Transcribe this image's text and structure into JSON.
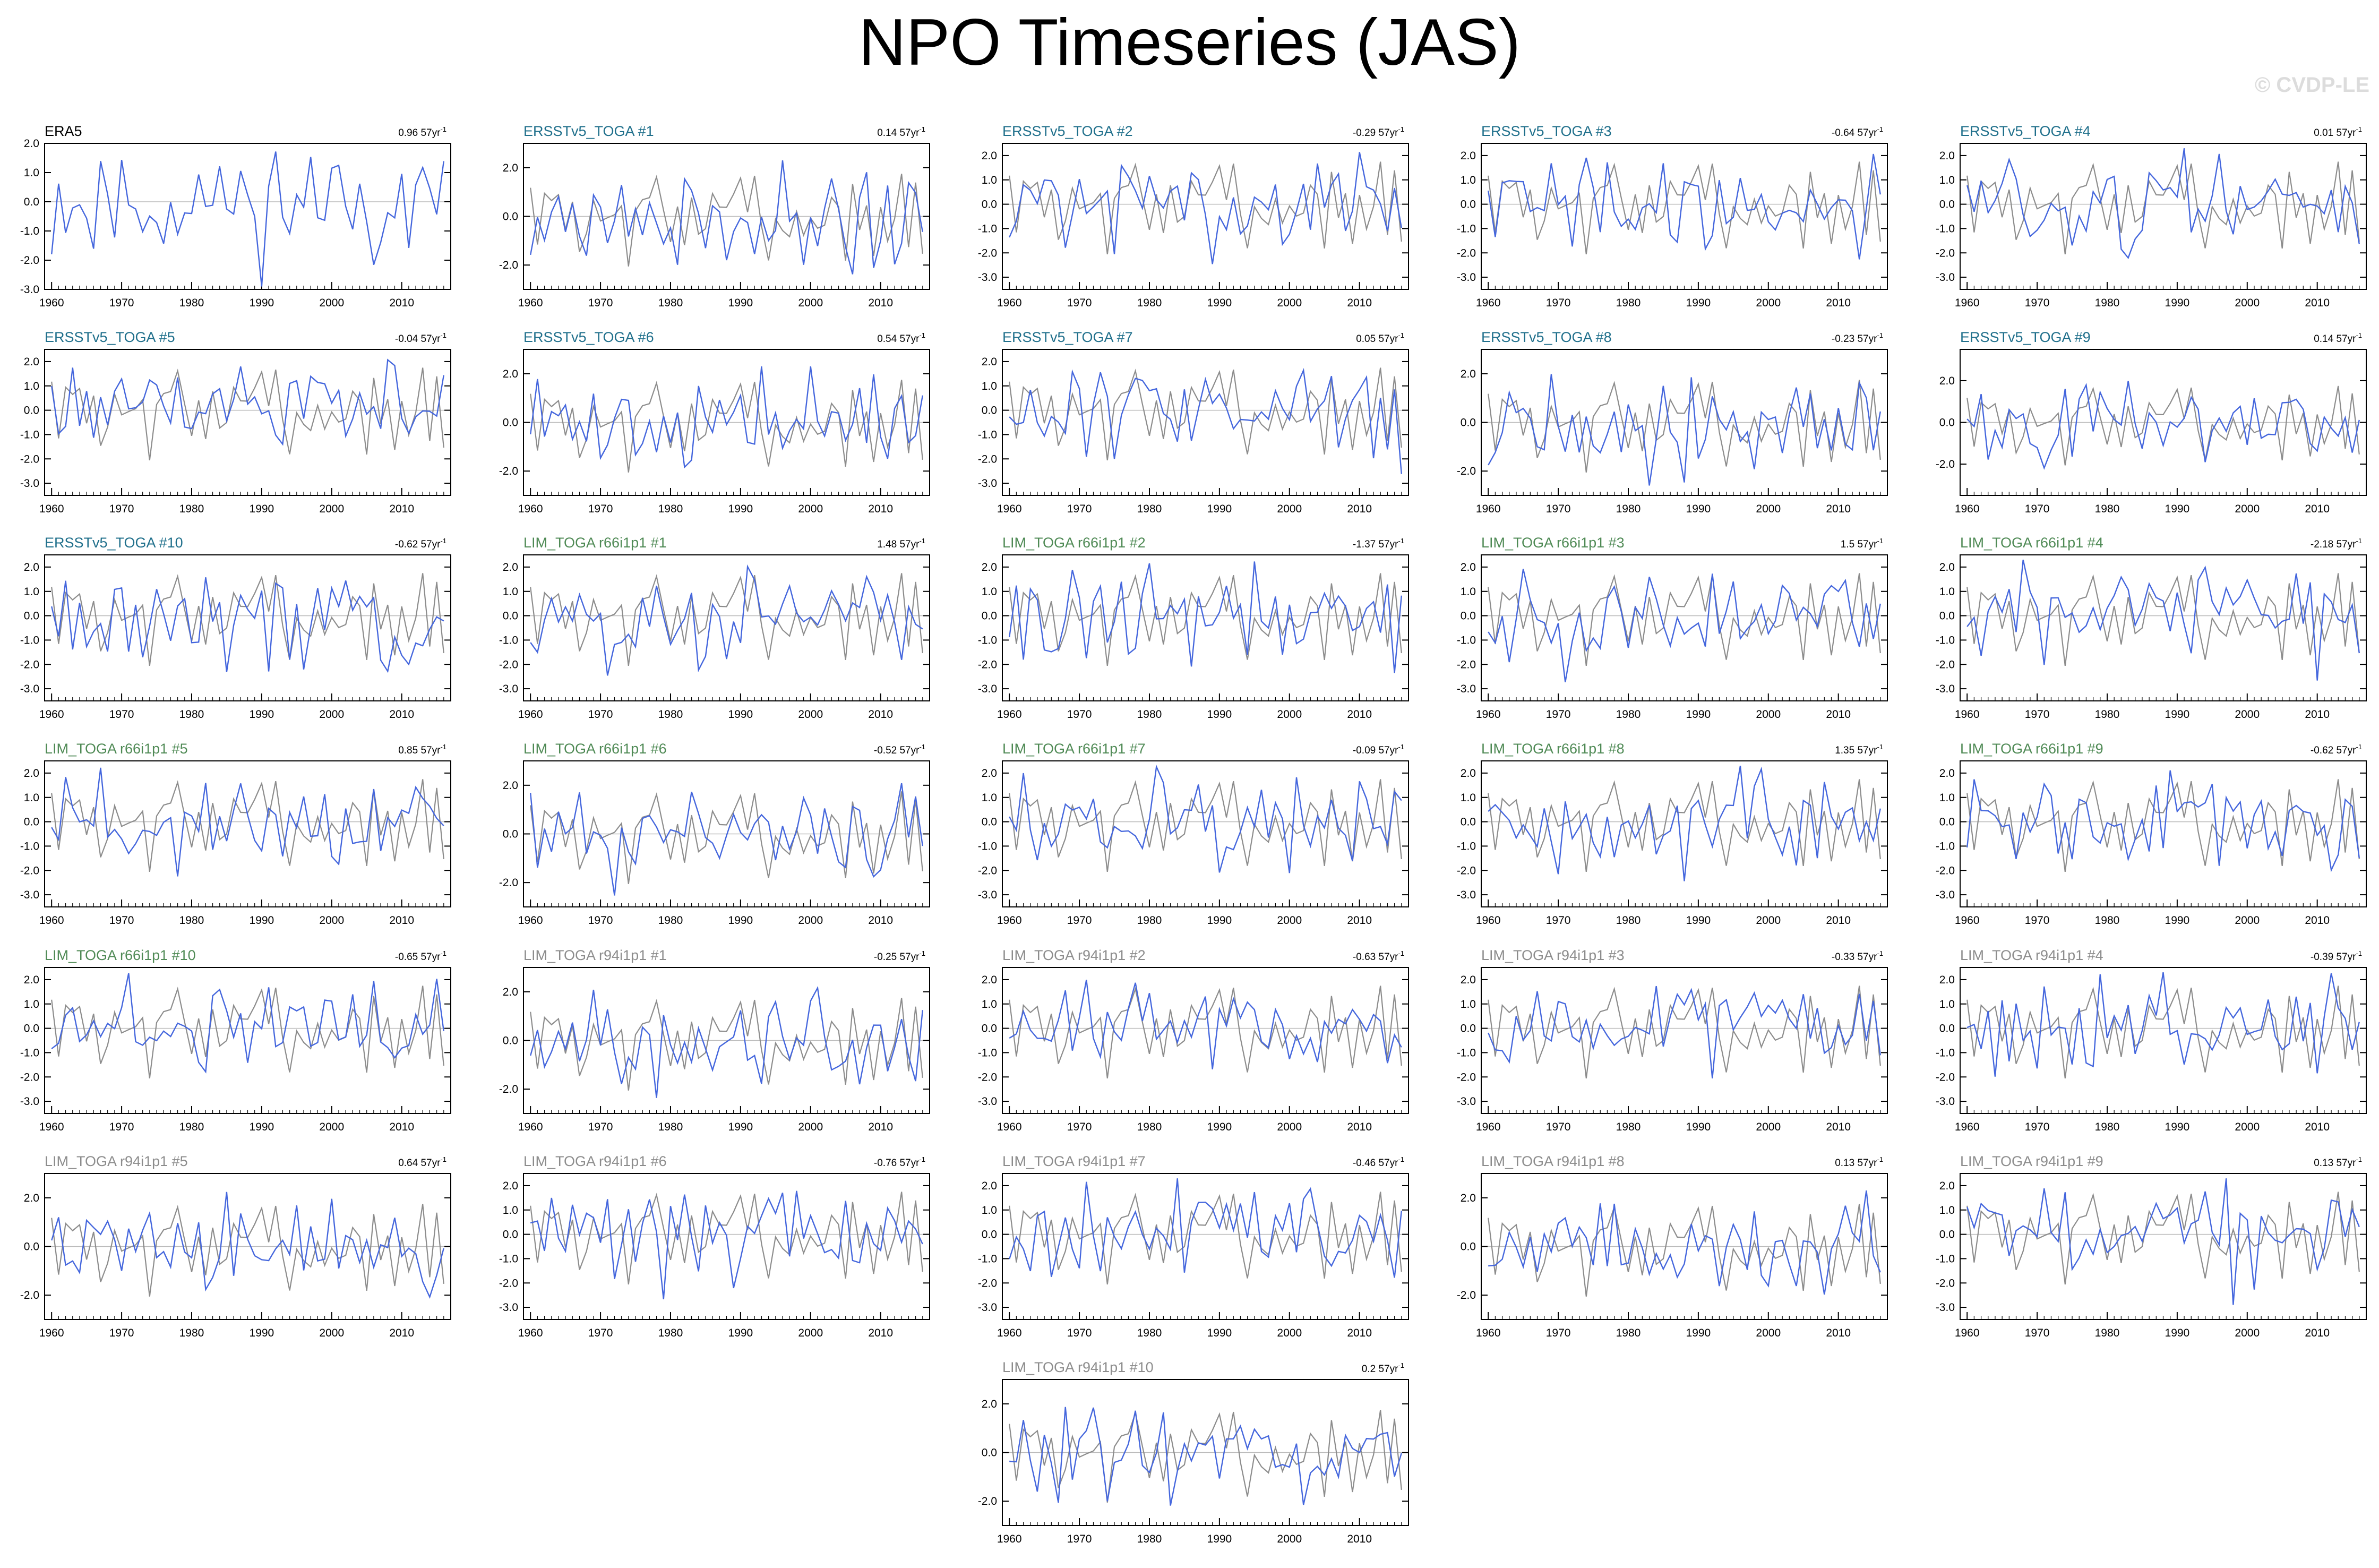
{
  "title": "NPO Timeseries (JAS)",
  "watermark": "© CVDP-LE",
  "colors": {
    "obs_line": "#4466dd",
    "reference_line": "#8c8c8c",
    "zero_line": "#bbbbbb",
    "title_ersst": "#1f6f8b",
    "title_lim66": "#4f8a55",
    "title_lim94": "#8c8c8c",
    "title_era5": "#000000"
  },
  "chart_data": {
    "type": "line",
    "x_range": [
      1960,
      2016
    ],
    "x_ticks": [
      1960,
      1970,
      1980,
      1990,
      2000,
      2010
    ],
    "series_note": "",
    "panels": [
      {
        "title": "ERA5",
        "group": "era5",
        "trend": "0.96 57yr",
        "ylim": [
          -3.0,
          2.0
        ],
        "yticks": [
          "2.0",
          "1.0",
          "0.0",
          "-1.0",
          "-2.0",
          "-3.0"
        ],
        "seed": 11
      },
      {
        "title": "ERSSTv5_TOGA #1",
        "group": "ersst",
        "trend": "0.14 57yr",
        "ylim": [
          -3.0,
          3.0
        ],
        "yticks": [
          "2.0",
          "0.0",
          "-2.0"
        ],
        "seed": 21
      },
      {
        "title": "ERSSTv5_TOGA #2",
        "group": "ersst",
        "trend": "-0.29 57yr",
        "ylim": [
          -3.5,
          2.5
        ],
        "yticks": [
          "2.0",
          "1.0",
          "0.0",
          "-1.0",
          "-2.0",
          "-3.0"
        ],
        "seed": 31
      },
      {
        "title": "ERSSTv5_TOGA #3",
        "group": "ersst",
        "trend": "-0.64 57yr",
        "ylim": [
          -3.5,
          2.5
        ],
        "yticks": [
          "2.0",
          "1.0",
          "0.0",
          "-1.0",
          "-2.0",
          "-3.0"
        ],
        "seed": 41
      },
      {
        "title": "ERSSTv5_TOGA #4",
        "group": "ersst",
        "trend": "0.01 57yr",
        "ylim": [
          -3.5,
          2.5
        ],
        "yticks": [
          "2.0",
          "1.0",
          "0.0",
          "-1.0",
          "-2.0",
          "-3.0"
        ],
        "seed": 51
      },
      {
        "title": "ERSSTv5_TOGA #5",
        "group": "ersst",
        "trend": "-0.04 57yr",
        "ylim": [
          -3.5,
          2.5
        ],
        "yticks": [
          "2.0",
          "1.0",
          "0.0",
          "-1.0",
          "-2.0",
          "-3.0"
        ],
        "seed": 61
      },
      {
        "title": "ERSSTv5_TOGA #6",
        "group": "ersst",
        "trend": "0.54 57yr",
        "ylim": [
          -3.0,
          3.0
        ],
        "yticks": [
          "2.0",
          "0.0",
          "-2.0"
        ],
        "seed": 71
      },
      {
        "title": "ERSSTv5_TOGA #7",
        "group": "ersst",
        "trend": "0.05 57yr",
        "ylim": [
          -3.5,
          2.5
        ],
        "yticks": [
          "2.0",
          "1.0",
          "0.0",
          "-1.0",
          "-2.0",
          "-3.0"
        ],
        "seed": 81
      },
      {
        "title": "ERSSTv5_TOGA #8",
        "group": "ersst",
        "trend": "-0.23 57yr",
        "ylim": [
          -3.0,
          3.0
        ],
        "yticks": [
          "2.0",
          "0.0",
          "-2.0"
        ],
        "seed": 91
      },
      {
        "title": "ERSSTv5_TOGA #9",
        "group": "ersst",
        "trend": "0.14 57yr",
        "ylim": [
          -3.5,
          3.5
        ],
        "yticks": [
          "2.0",
          "0.0",
          "-2.0"
        ],
        "seed": 101
      },
      {
        "title": "ERSSTv5_TOGA #10",
        "group": "ersst",
        "trend": "-0.62 57yr",
        "ylim": [
          -3.5,
          2.5
        ],
        "yticks": [
          "2.0",
          "1.0",
          "0.0",
          "-1.0",
          "-2.0",
          "-3.0"
        ],
        "seed": 111
      },
      {
        "title": "LIM_TOGA r66i1p1 #1",
        "group": "lim66",
        "trend": "1.48 57yr",
        "ylim": [
          -3.5,
          2.5
        ],
        "yticks": [
          "2.0",
          "1.0",
          "0.0",
          "-1.0",
          "-2.0",
          "-3.0"
        ],
        "seed": 121
      },
      {
        "title": "LIM_TOGA r66i1p1 #2",
        "group": "lim66",
        "trend": "-1.37 57yr",
        "ylim": [
          -3.5,
          2.5
        ],
        "yticks": [
          "2.0",
          "1.0",
          "0.0",
          "-1.0",
          "-2.0",
          "-3.0"
        ],
        "seed": 131
      },
      {
        "title": "LIM_TOGA r66i1p1 #3",
        "group": "lim66",
        "trend": "1.5 57yr",
        "ylim": [
          -3.5,
          2.5
        ],
        "yticks": [
          "2.0",
          "1.0",
          "0.0",
          "-1.0",
          "-2.0",
          "-3.0"
        ],
        "seed": 141
      },
      {
        "title": "LIM_TOGA r66i1p1 #4",
        "group": "lim66",
        "trend": "-2.18 57yr",
        "ylim": [
          -3.5,
          2.5
        ],
        "yticks": [
          "2.0",
          "1.0",
          "0.0",
          "-1.0",
          "-2.0",
          "-3.0"
        ],
        "seed": 151
      },
      {
        "title": "LIM_TOGA r66i1p1 #5",
        "group": "lim66",
        "trend": "0.85 57yr",
        "ylim": [
          -3.5,
          2.5
        ],
        "yticks": [
          "2.0",
          "1.0",
          "0.0",
          "-1.0",
          "-2.0",
          "-3.0"
        ],
        "seed": 161
      },
      {
        "title": "LIM_TOGA r66i1p1 #6",
        "group": "lim66",
        "trend": "-0.52 57yr",
        "ylim": [
          -3.0,
          3.0
        ],
        "yticks": [
          "2.0",
          "0.0",
          "-2.0"
        ],
        "seed": 171
      },
      {
        "title": "LIM_TOGA r66i1p1 #7",
        "group": "lim66",
        "trend": "-0.09 57yr",
        "ylim": [
          -3.5,
          2.5
        ],
        "yticks": [
          "2.0",
          "1.0",
          "0.0",
          "-1.0",
          "-2.0",
          "-3.0"
        ],
        "seed": 181
      },
      {
        "title": "LIM_TOGA r66i1p1 #8",
        "group": "lim66",
        "trend": "1.35 57yr",
        "ylim": [
          -3.5,
          2.5
        ],
        "yticks": [
          "2.0",
          "1.0",
          "0.0",
          "-1.0",
          "-2.0",
          "-3.0"
        ],
        "seed": 191
      },
      {
        "title": "LIM_TOGA r66i1p1 #9",
        "group": "lim66",
        "trend": "-0.62 57yr",
        "ylim": [
          -3.5,
          2.5
        ],
        "yticks": [
          "2.0",
          "1.0",
          "0.0",
          "-1.0",
          "-2.0",
          "-3.0"
        ],
        "seed": 201
      },
      {
        "title": "LIM_TOGA r66i1p1 #10",
        "group": "lim66",
        "trend": "-0.65 57yr",
        "ylim": [
          -3.5,
          2.5
        ],
        "yticks": [
          "2.0",
          "1.0",
          "0.0",
          "-1.0",
          "-2.0",
          "-3.0"
        ],
        "seed": 211
      },
      {
        "title": "LIM_TOGA r94i1p1 #1",
        "group": "lim94",
        "trend": "-0.25 57yr",
        "ylim": [
          -3.0,
          3.0
        ],
        "yticks": [
          "2.0",
          "0.0",
          "-2.0"
        ],
        "seed": 221
      },
      {
        "title": "LIM_TOGA r94i1p1 #2",
        "group": "lim94",
        "trend": "-0.63 57yr",
        "ylim": [
          -3.5,
          2.5
        ],
        "yticks": [
          "2.0",
          "1.0",
          "0.0",
          "-1.0",
          "-2.0",
          "-3.0"
        ],
        "seed": 231
      },
      {
        "title": "LIM_TOGA r94i1p1 #3",
        "group": "lim94",
        "trend": "-0.33 57yr",
        "ylim": [
          -3.5,
          2.5
        ],
        "yticks": [
          "2.0",
          "1.0",
          "0.0",
          "-1.0",
          "-2.0",
          "-3.0"
        ],
        "seed": 241
      },
      {
        "title": "LIM_TOGA r94i1p1 #4",
        "group": "lim94",
        "trend": "-0.39 57yr",
        "ylim": [
          -3.5,
          2.5
        ],
        "yticks": [
          "2.0",
          "1.0",
          "0.0",
          "-1.0",
          "-2.0",
          "-3.0"
        ],
        "seed": 251
      },
      {
        "title": "LIM_TOGA r94i1p1 #5",
        "group": "lim94",
        "trend": "0.64 57yr",
        "ylim": [
          -3.0,
          3.0
        ],
        "yticks": [
          "2.0",
          "0.0",
          "-2.0"
        ],
        "seed": 261
      },
      {
        "title": "LIM_TOGA r94i1p1 #6",
        "group": "lim94",
        "trend": "-0.76 57yr",
        "ylim": [
          -3.5,
          2.5
        ],
        "yticks": [
          "2.0",
          "1.0",
          "0.0",
          "-1.0",
          "-2.0",
          "-3.0"
        ],
        "seed": 271
      },
      {
        "title": "LIM_TOGA r94i1p1 #7",
        "group": "lim94",
        "trend": "-0.46 57yr",
        "ylim": [
          -3.5,
          2.5
        ],
        "yticks": [
          "2.0",
          "1.0",
          "0.0",
          "-1.0",
          "-2.0",
          "-3.0"
        ],
        "seed": 281
      },
      {
        "title": "LIM_TOGA r94i1p1 #8",
        "group": "lim94",
        "trend": "0.13 57yr",
        "ylim": [
          -3.0,
          3.0
        ],
        "yticks": [
          "2.0",
          "0.0",
          "-2.0"
        ],
        "seed": 291
      },
      {
        "title": "LIM_TOGA r94i1p1 #9",
        "group": "lim94",
        "trend": "0.13 57yr",
        "ylim": [
          -3.5,
          2.5
        ],
        "yticks": [
          "2.0",
          "1.0",
          "0.0",
          "-1.0",
          "-2.0",
          "-3.0"
        ],
        "seed": 301
      },
      {
        "title": "LIM_TOGA r94i1p1 #10",
        "group": "lim94",
        "trend": "0.2 57yr",
        "ylim": [
          -3.0,
          3.0
        ],
        "yticks": [
          "2.0",
          "0.0",
          "-2.0"
        ],
        "seed": 311
      }
    ]
  }
}
